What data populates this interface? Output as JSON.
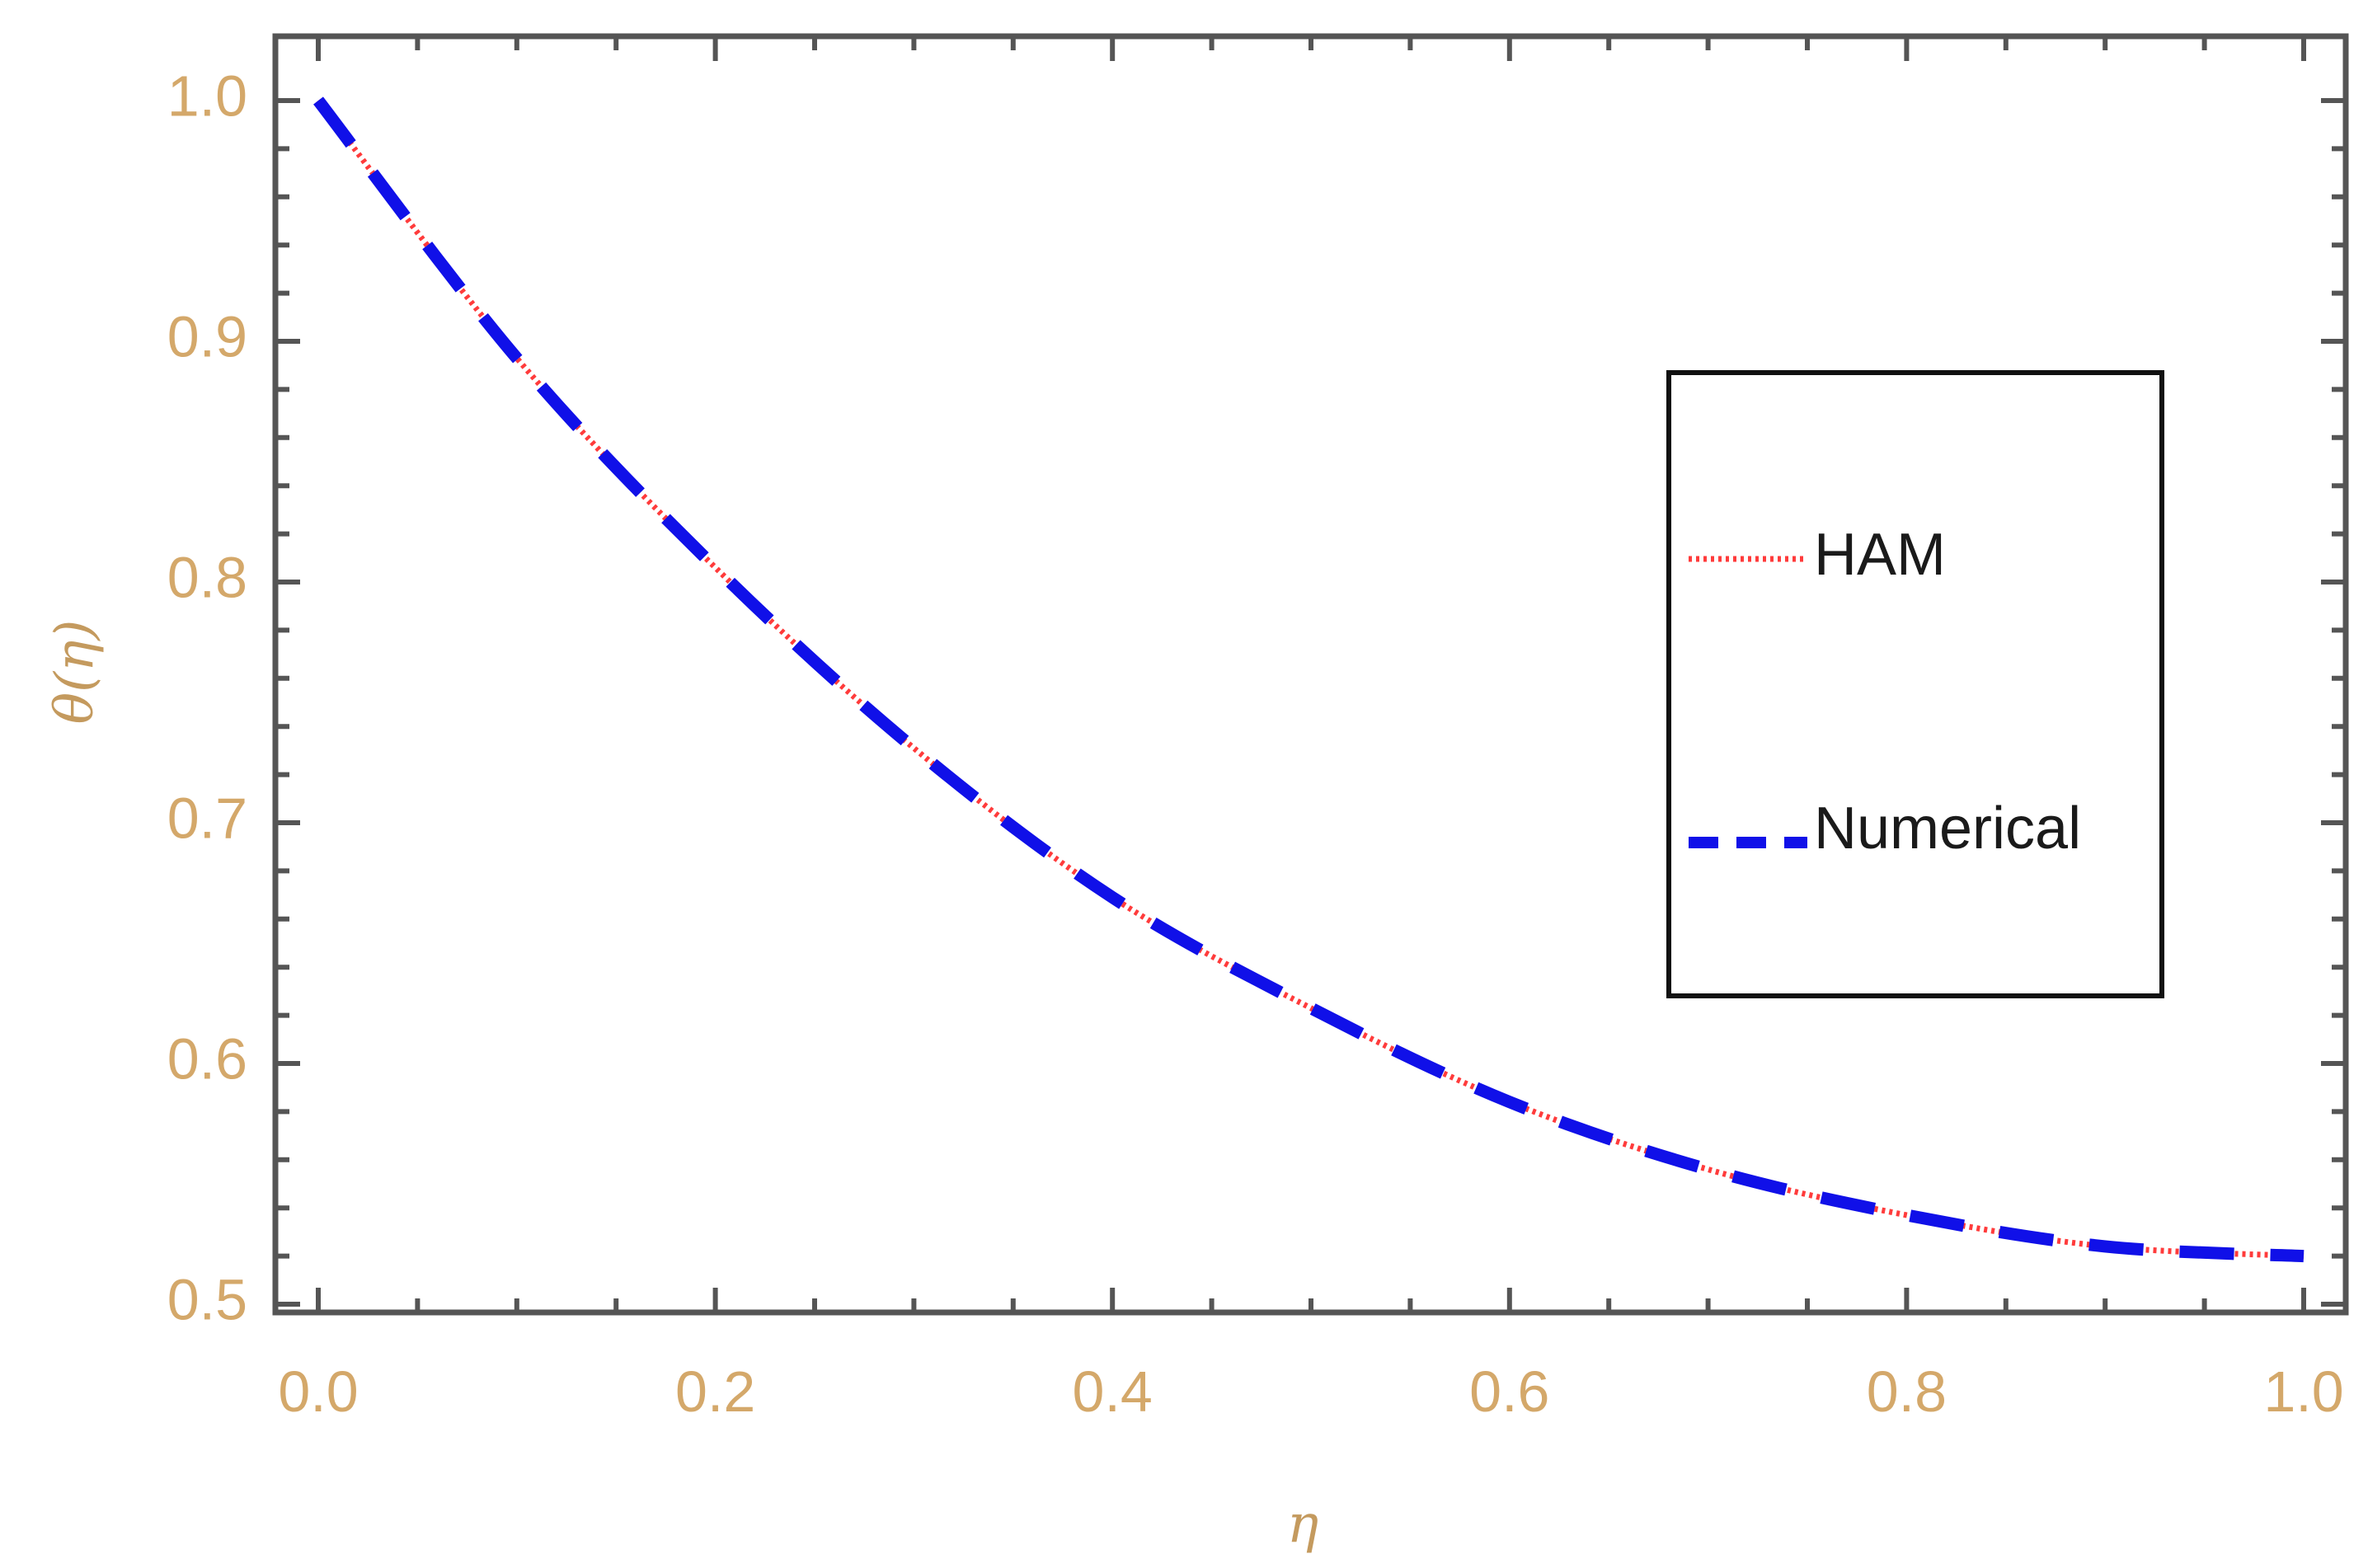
{
  "chart_data": {
    "type": "line",
    "title": "",
    "xlabel": "η",
    "ylabel": "θ(η)",
    "xlim": [
      0.0,
      1.0
    ],
    "ylim": [
      0.5,
      1.0
    ],
    "x_ticks": [
      "0.0",
      "0.2",
      "0.4",
      "0.6",
      "0.8",
      "1.0"
    ],
    "y_ticks": [
      "0.5",
      "0.6",
      "0.7",
      "0.8",
      "0.9",
      "1.0"
    ],
    "grid": false,
    "legend_position": "right",
    "series": [
      {
        "name": "HAM",
        "style": "dotted",
        "color": "#ff3b3b",
        "x": [
          0.0,
          0.1,
          0.2,
          0.3,
          0.4,
          0.5,
          0.6,
          0.7,
          0.8,
          0.9,
          1.0
        ],
        "y": [
          1.0,
          0.893,
          0.806,
          0.731,
          0.669,
          0.623,
          0.584,
          0.556,
          0.537,
          0.524,
          0.52
        ]
      },
      {
        "name": "Numerical",
        "style": "dashed",
        "color": "#1010e8",
        "x": [
          0.0,
          0.1,
          0.2,
          0.3,
          0.4,
          0.5,
          0.6,
          0.7,
          0.8,
          0.9,
          1.0
        ],
        "y": [
          1.0,
          0.893,
          0.806,
          0.731,
          0.669,
          0.623,
          0.584,
          0.556,
          0.537,
          0.524,
          0.52
        ]
      }
    ]
  },
  "colors": {
    "frame": "#555555",
    "tick_label": "#d4a86a",
    "axis_title": "#c49a5e",
    "legend_border": "#111111"
  }
}
